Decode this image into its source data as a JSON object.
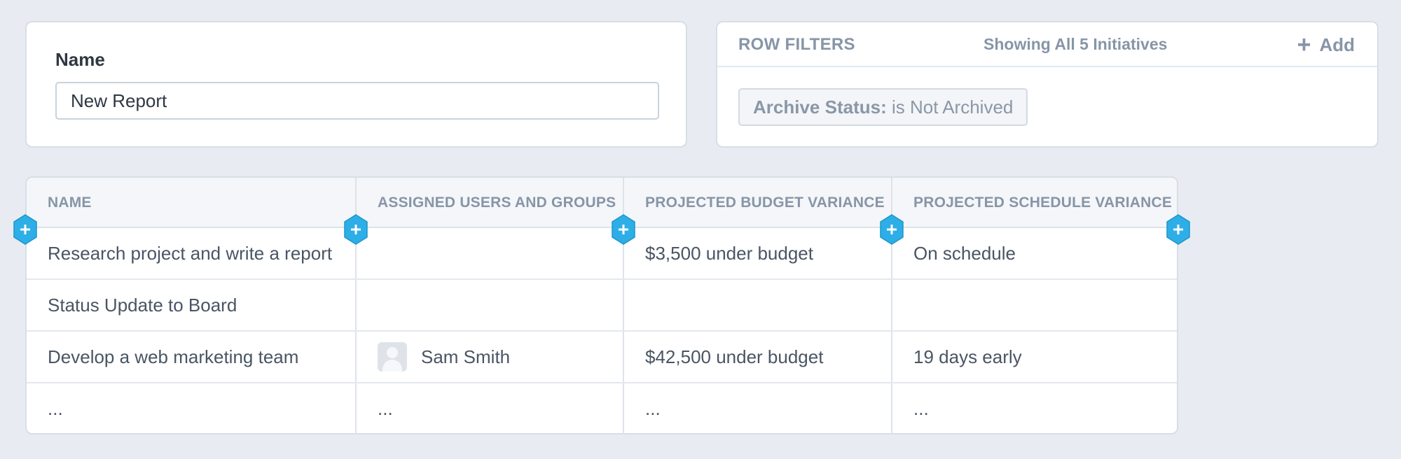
{
  "name_panel": {
    "label": "Name",
    "value": "New Report"
  },
  "filters": {
    "title": "ROW FILTERS",
    "showing": "Showing All 5 Initiatives",
    "add_label": "Add",
    "chip": {
      "field": "Archive Status:",
      "condition": "is Not Archived"
    }
  },
  "table": {
    "columns": [
      "NAME",
      "ASSIGNED USERS AND GROUPS",
      "PROJECTED BUDGET VARIANCE",
      "PROJECTED SCHEDULE VARIANCE"
    ],
    "rows": [
      {
        "name": "Research project and write a report",
        "assigned": "",
        "budget": "$3,500 under budget",
        "schedule": "On schedule"
      },
      {
        "name": "Status Update to Board",
        "assigned": "",
        "budget": "",
        "schedule": ""
      },
      {
        "name": "Develop a web marketing team",
        "assigned": "Sam Smith",
        "budget": "$42,500 under budget",
        "schedule": "19 days early"
      },
      {
        "name": "...",
        "assigned": "...",
        "budget": "...",
        "schedule": "..."
      }
    ]
  },
  "colors": {
    "background": "#e8ecf2",
    "accent_insert_button": "#2eaee6",
    "muted_text": "#8795a7"
  },
  "icons": {
    "add": "plus-icon",
    "insert_column": "plus-hexagon-icon",
    "avatar": "user-placeholder-icon"
  }
}
